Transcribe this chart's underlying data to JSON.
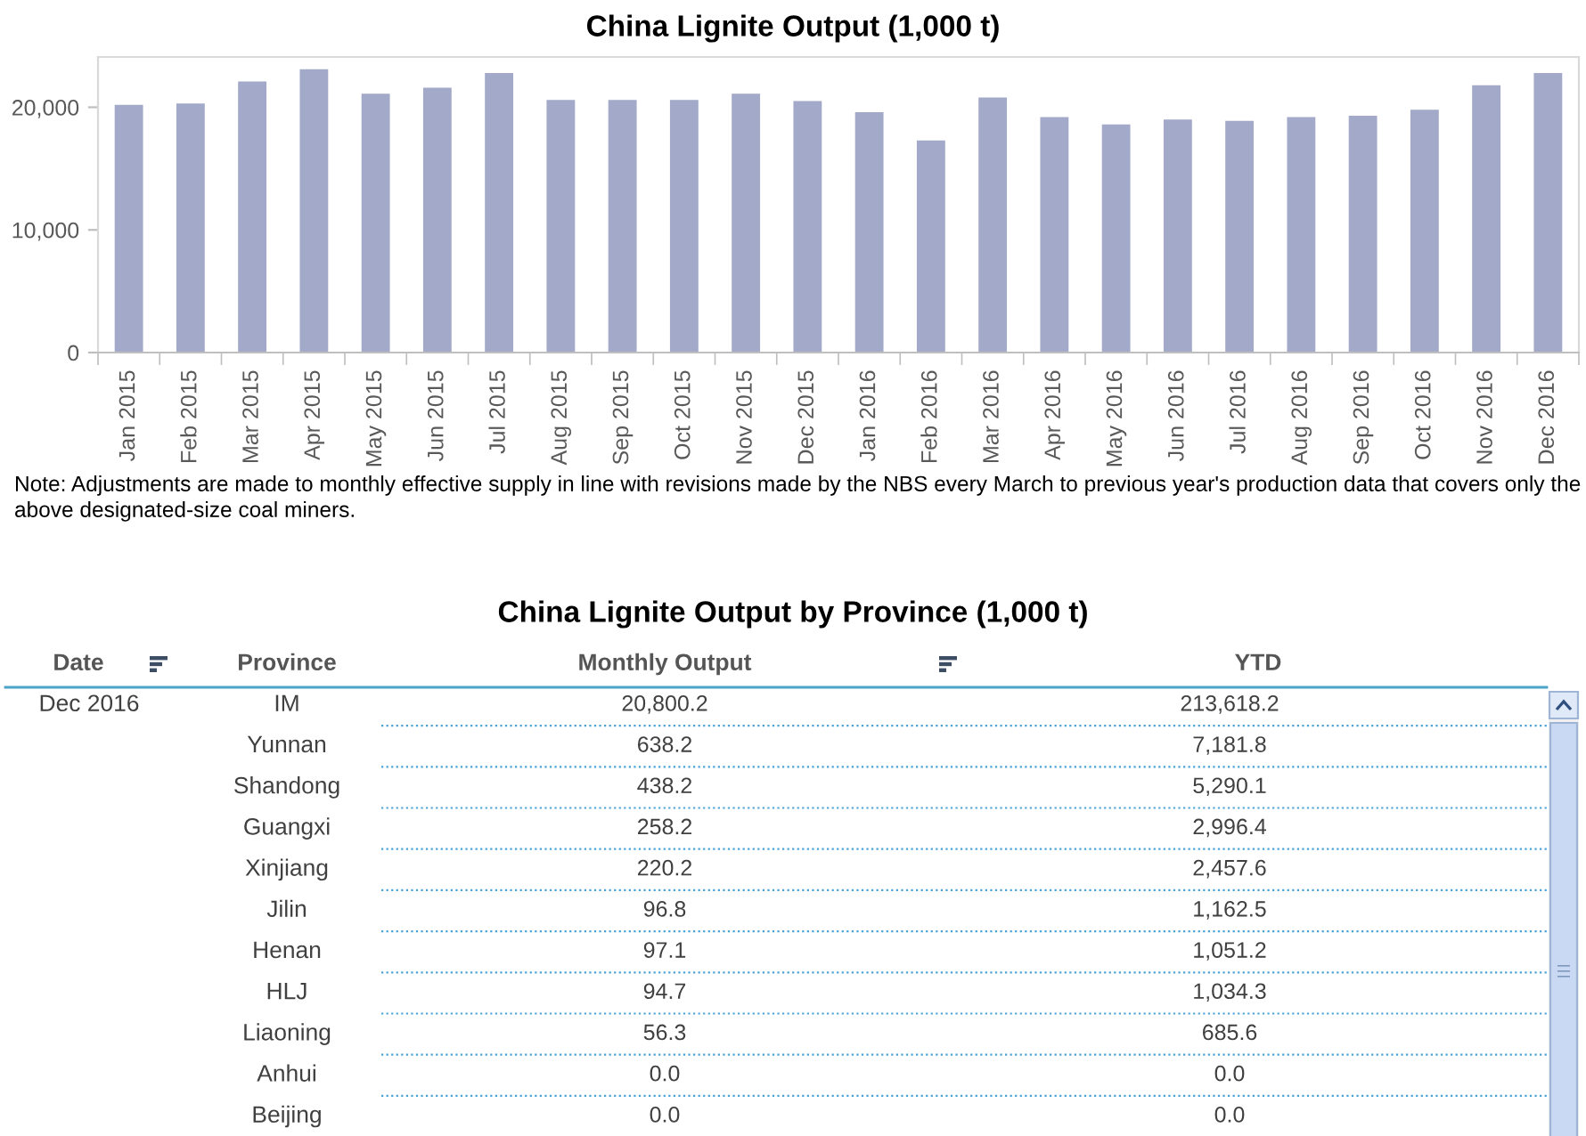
{
  "chart_data": [
    {
      "type": "bar",
      "title": "China Lignite Output (1,000 t)",
      "categories": [
        "Jan 2015",
        "Feb 2015",
        "Mar 2015",
        "Apr 2015",
        "May 2015",
        "Jun 2015",
        "Jul 2015",
        "Aug 2015",
        "Sep 2015",
        "Oct 2015",
        "Nov 2015",
        "Dec 2015",
        "Jan 2016",
        "Feb 2016",
        "Mar 2016",
        "Apr 2016",
        "May 2016",
        "Jun 2016",
        "Jul 2016",
        "Aug 2016",
        "Sep 2016",
        "Oct 2016",
        "Nov 2016",
        "Dec 2016"
      ],
      "values": [
        20200,
        20300,
        22100,
        23100,
        21100,
        21600,
        22800,
        20600,
        20600,
        20600,
        21100,
        20500,
        19600,
        17300,
        20800,
        19200,
        18600,
        19000,
        18900,
        19200,
        19300,
        19800,
        21800,
        22800
      ],
      "color": "#a3aac9",
      "ylim": [
        0,
        24100
      ],
      "yticks": [
        0,
        {
          "value": 10000,
          "label": "10,000"
        },
        {
          "value": 20000,
          "label": "20,000"
        }
      ],
      "grid": false,
      "annotations": [
        "Note: Adjustments are made to monthly effective supply in line with revisions made by the NBS every March to previous year's production data that covers only the above designated-size coal miners."
      ]
    },
    {
      "type": "other",
      "title": "China Lignite Output by Province (1,000 t)",
      "xlabel": "Province",
      "annotations": [
        "Date",
        "Dec 2016"
      ],
      "categories": [
        "IM",
        "Yunnan",
        "Shandong",
        "Guangxi",
        "Xinjiang",
        "Jilin",
        "Henan",
        "HLJ",
        "Liaoning",
        "Anhui",
        "Beijing"
      ],
      "series": [
        {
          "name": "Monthly Output",
          "values": [
            20800.2,
            638.2,
            438.2,
            258.2,
            220.2,
            96.8,
            97.1,
            94.7,
            56.3,
            0.0,
            0.0
          ],
          "value_labels": [
            "20,800.2",
            "638.2",
            "438.2",
            "258.2",
            "220.2",
            "96.8",
            "97.1",
            "94.7",
            "56.3",
            "0.0",
            "0.0"
          ]
        },
        {
          "name": "YTD",
          "values": [
            213618.2,
            7181.8,
            5290.1,
            2996.4,
            2457.6,
            1162.5,
            1051.2,
            1034.3,
            685.6,
            0.0,
            0.0
          ],
          "value_labels": [
            "213,618.2",
            "7,181.8",
            "5,290.1",
            "2,996.4",
            "2,457.6",
            "1,162.5",
            "1,051.2",
            "1,034.3",
            "685.6",
            "0.0",
            "0.0"
          ]
        }
      ]
    }
  ]
}
